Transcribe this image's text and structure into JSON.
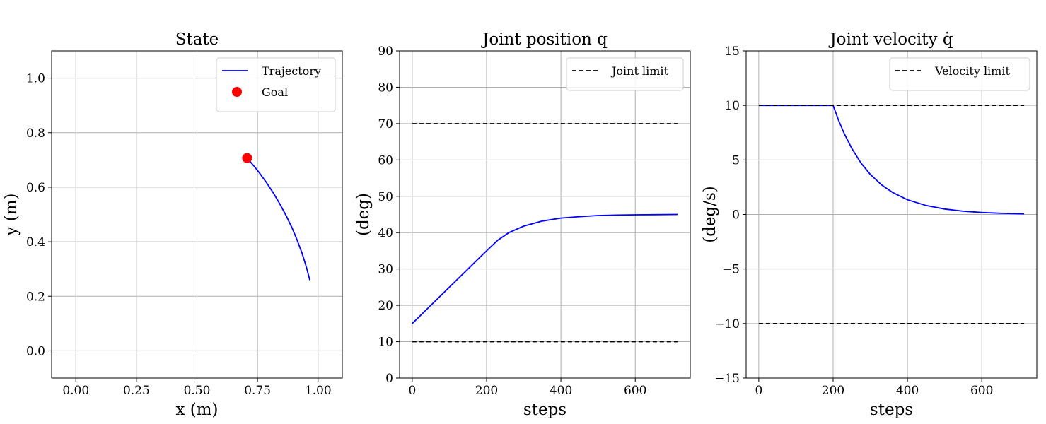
{
  "chart_data": [
    {
      "type": "line",
      "title": "State",
      "xlabel": "x (m)",
      "ylabel": "y (m)",
      "xlim": [
        -0.1,
        1.1
      ],
      "ylim": [
        -0.1,
        1.1
      ],
      "xticks": [
        "0.00",
        "0.25",
        "0.50",
        "0.75",
        "1.00"
      ],
      "xtick_values": [
        0,
        0.25,
        0.5,
        0.75,
        1.0
      ],
      "yticks": [
        "0.0",
        "0.2",
        "0.4",
        "0.6",
        "0.8",
        "1.0"
      ],
      "ytick_values": [
        0,
        0.2,
        0.4,
        0.6,
        0.8,
        1.0
      ],
      "grid": true,
      "legend": "top-right",
      "series": [
        {
          "name": "Trajectory",
          "kind": "line",
          "color": "#0000ff",
          "x": [
            0.966,
            0.951,
            0.934,
            0.914,
            0.893,
            0.869,
            0.843,
            0.816,
            0.786,
            0.755,
            0.733,
            0.717,
            0.71,
            0.708,
            0.707
          ],
          "y": [
            0.259,
            0.309,
            0.358,
            0.405,
            0.45,
            0.494,
            0.537,
            0.578,
            0.618,
            0.656,
            0.68,
            0.697,
            0.704,
            0.706,
            0.707
          ]
        },
        {
          "name": "Goal",
          "kind": "scatter",
          "color": "#ff0000",
          "x": [
            0.707
          ],
          "y": [
            0.707
          ]
        }
      ]
    },
    {
      "type": "line",
      "title": "Joint position q",
      "xlabel": "steps",
      "ylabel": "(deg)",
      "xlim": [
        -34,
        748
      ],
      "ylim": [
        0,
        90
      ],
      "xticks": [
        "0",
        "200",
        "400",
        "600"
      ],
      "xtick_values": [
        0,
        200,
        400,
        600
      ],
      "yticks": [
        "0",
        "10",
        "20",
        "30",
        "40",
        "50",
        "60",
        "70",
        "80",
        "90"
      ],
      "ytick_values": [
        0,
        10,
        20,
        30,
        40,
        50,
        60,
        70,
        80,
        90
      ],
      "grid": true,
      "legend": "top-right",
      "series": [
        {
          "name": "",
          "kind": "line",
          "color": "#0000ff",
          "x": [
            0,
            50,
            100,
            150,
            200,
            230,
            260,
            300,
            350,
            400,
            450,
            500,
            550,
            600,
            650,
            714
          ],
          "y": [
            15,
            20,
            25,
            30,
            35,
            37.9,
            40.0,
            41.8,
            43.2,
            44.0,
            44.4,
            44.7,
            44.83,
            44.9,
            44.95,
            45
          ]
        },
        {
          "name": "Joint limit",
          "kind": "dashed",
          "color": "#000000",
          "x": [
            0,
            714
          ],
          "y": [
            70,
            70
          ]
        },
        {
          "name": "",
          "kind": "dashed",
          "color": "#000000",
          "x": [
            0,
            714
          ],
          "y": [
            10,
            10
          ]
        }
      ]
    },
    {
      "type": "line",
      "title": "Joint velocity q̇",
      "xlabel": "steps",
      "ylabel": "(deg/s)",
      "xlim": [
        -34,
        748
      ],
      "ylim": [
        -15,
        15
      ],
      "xticks": [
        "0",
        "200",
        "400",
        "600"
      ],
      "xtick_values": [
        0,
        200,
        400,
        600
      ],
      "yticks": [
        "−15",
        "−10",
        "−5",
        "0",
        "5",
        "10",
        "15"
      ],
      "ytick_values": [
        -15,
        -10,
        -5,
        0,
        5,
        10,
        15
      ],
      "grid": true,
      "legend": "top-right",
      "series": [
        {
          "name": "",
          "kind": "line",
          "color": "#0000ff",
          "x": [
            0,
            200,
            215,
            230,
            250,
            275,
            300,
            330,
            360,
            400,
            450,
            500,
            550,
            600,
            650,
            714
          ],
          "y": [
            10,
            10,
            8.6,
            7.4,
            6.07,
            4.72,
            3.68,
            2.72,
            2.02,
            1.35,
            0.82,
            0.5,
            0.3,
            0.18,
            0.11,
            0.06
          ]
        },
        {
          "name": "Velocity limit",
          "kind": "dashed",
          "color": "#000000",
          "x": [
            0,
            714
          ],
          "y": [
            10,
            10
          ]
        },
        {
          "name": "",
          "kind": "dashed",
          "color": "#000000",
          "x": [
            0,
            714
          ],
          "y": [
            -10,
            -10
          ]
        }
      ]
    }
  ]
}
